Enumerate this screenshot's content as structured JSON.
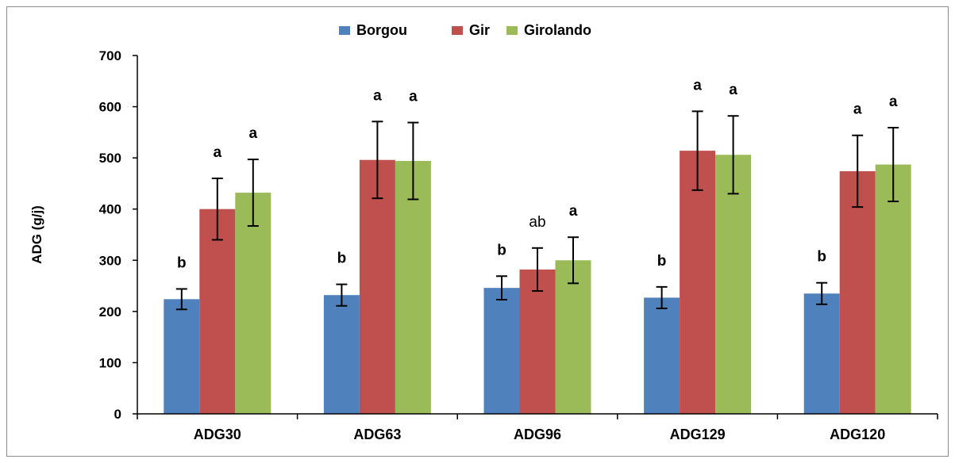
{
  "chart_data": {
    "type": "bar",
    "title": "",
    "xlabel": "",
    "ylabel": "ADG (g/j)",
    "ylim": [
      0,
      700
    ],
    "yticks": [
      0,
      100,
      200,
      300,
      400,
      500,
      600,
      700
    ],
    "grid": false,
    "legend_position": "top-center",
    "categories": [
      "ADG30",
      "ADG63",
      "ADG96",
      "ADG129",
      "ADG120"
    ],
    "series": [
      {
        "name": "Borgou",
        "color": "#4f81bd",
        "values": [
          224,
          232,
          246,
          227,
          235
        ],
        "errors": [
          20,
          21,
          23,
          21,
          21
        ],
        "labels": [
          "b",
          "b",
          "b",
          "b",
          "b"
        ]
      },
      {
        "name": "Gir",
        "color": "#c0504d",
        "values": [
          400,
          496,
          282,
          514,
          474
        ],
        "errors": [
          60,
          75,
          42,
          77,
          70
        ],
        "labels": [
          "a",
          "a",
          "ab",
          "a",
          "a"
        ]
      },
      {
        "name": "Girolando",
        "color": "#9bbb59",
        "values": [
          432,
          494,
          300,
          506,
          487
        ],
        "errors": [
          65,
          75,
          45,
          76,
          72
        ],
        "labels": [
          "a",
          "a",
          "a",
          "a",
          "a"
        ]
      }
    ]
  }
}
